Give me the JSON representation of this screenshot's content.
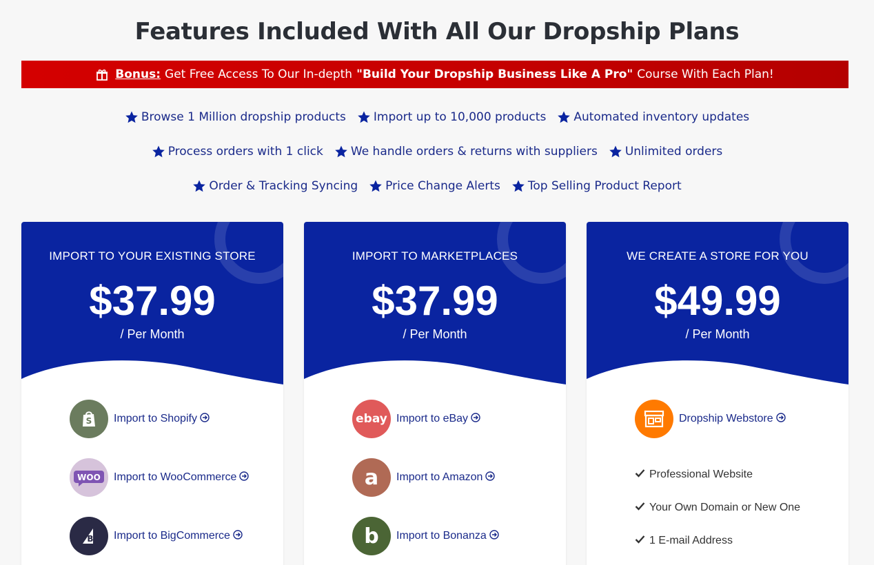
{
  "title": "Features Included With All Our Dropship Plans",
  "bonus": {
    "label": "Bonus:",
    "text_before": "Get Free Access To Our In-depth",
    "course": "\"Build Your Dropship Business Like A Pro\"",
    "text_after": "Course With Each Plan!",
    "icon": "gift-icon"
  },
  "features": {
    "row1": [
      "Browse 1 Million dropship products",
      "Import up to 10,000 products",
      "Automated inventory updates"
    ],
    "row2": [
      "Process orders with 1 click",
      "We handle orders & returns with suppliers",
      "Unlimited orders"
    ],
    "row3": [
      "Order & Tracking Syncing",
      "Price Change Alerts",
      "Top Selling Product Report"
    ],
    "icon": "star-icon"
  },
  "colors": {
    "card_blue": "#0a24a0",
    "accent_red": "#c60000",
    "feature_text": "#1a2a8a"
  },
  "plans": [
    {
      "name": "IMPORT TO YOUR EXISTING STORE",
      "price": "$37.99",
      "period": "/ Per Month",
      "items": [
        {
          "label": "Import to Shopify",
          "logo": "shopify-logo",
          "color": "#6b7c5e"
        },
        {
          "label": "Import to WooCommerce",
          "logo": "woocommerce-logo",
          "color": "#d6c3db"
        },
        {
          "label": "Import to BigCommerce",
          "logo": "bigcommerce-logo",
          "color": "#2a2a45"
        }
      ]
    },
    {
      "name": "IMPORT TO MARKETPLACES",
      "price": "$37.99",
      "period": "/ Per Month",
      "items": [
        {
          "label": "Import to eBay",
          "logo": "ebay-logo",
          "color": "#e05a5a",
          "logo_text": "ebay"
        },
        {
          "label": "Import to Amazon",
          "logo": "amazon-logo",
          "color": "#b06a55",
          "logo_text": "a"
        },
        {
          "label": "Import to Bonanza",
          "logo": "bonanza-logo",
          "color": "#4b6535",
          "logo_text": "b"
        }
      ]
    },
    {
      "name": "WE CREATE A STORE FOR YOU",
      "price": "$49.99",
      "period": "/ Per Month",
      "items": [
        {
          "label": "Dropship Webstore",
          "logo": "webstore-logo",
          "color": "#ff7a00"
        }
      ],
      "checks": [
        "Professional Website",
        "Your Own Domain or New One",
        "1 E-mail Address"
      ]
    }
  ]
}
